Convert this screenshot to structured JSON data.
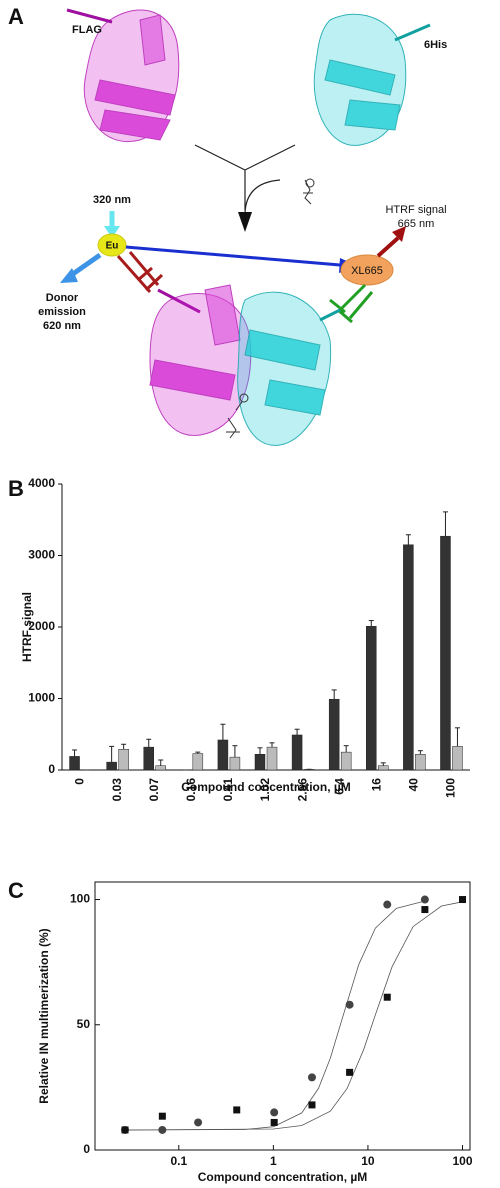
{
  "panel_a": {
    "label": "A",
    "flag": "FLAG",
    "his": "6His",
    "excitation": "320 nm",
    "donor": "Eu",
    "donor_emission": [
      "Donor",
      "emission",
      "620 nm"
    ],
    "htrf_signal": [
      "HTRF signal",
      "665 nm"
    ],
    "acceptor": "XL665"
  },
  "chart_data": [
    {
      "type": "bar",
      "panel_label": "B",
      "y_label": "HTRF signal",
      "x_label": "Compound concentration, µM",
      "categories": [
        "0",
        "0.03",
        "0.07",
        "0.16",
        "0.41",
        "1.02",
        "2.56",
        "6.4",
        "16",
        "40",
        "100"
      ],
      "series": [
        {
          "color": "#333333",
          "values": [
            190,
            110,
            320,
            0,
            420,
            220,
            490,
            990,
            2010,
            3150,
            3270
          ],
          "errors": [
            90,
            220,
            110,
            0,
            220,
            90,
            80,
            130,
            80,
            140,
            340
          ]
        },
        {
          "color": "#bbbbbb",
          "values": [
            0,
            290,
            60,
            230,
            180,
            320,
            10,
            250,
            60,
            220,
            330
          ],
          "errors": [
            0,
            70,
            80,
            20,
            160,
            60,
            0,
            90,
            40,
            50,
            260
          ]
        }
      ],
      "ylim": [
        0,
        4000
      ],
      "yticks": [
        0,
        1000,
        2000,
        3000,
        4000
      ]
    },
    {
      "type": "scatter",
      "panel_label": "C",
      "y_label": "Relative IN multimerization (%)",
      "x_label": "Compound concentration, µM",
      "log_x": true,
      "xlim": [
        0.013,
        120
      ],
      "xticks": [
        0.1,
        1,
        10,
        100
      ],
      "ylim": [
        0,
        107
      ],
      "yticks": [
        0,
        50,
        100
      ],
      "series": [
        {
          "marker": "circle",
          "color": "#444444",
          "x": [
            0.027,
            0.067,
            0.16,
            1.02,
            2.56,
            6.4,
            16,
            40
          ],
          "values": [
            8,
            8,
            11,
            15,
            29,
            58,
            98,
            100
          ]
        },
        {
          "marker": "square",
          "color": "#111111",
          "x": [
            0.027,
            0.067,
            0.41,
            1.02,
            2.56,
            6.4,
            16,
            40,
            100
          ],
          "values": [
            8,
            13.5,
            16,
            11,
            18,
            31,
            61,
            96,
            100
          ]
        }
      ],
      "fits": [
        {
          "color": "#555555",
          "x": [
            0.027,
            0.5,
            1,
            2,
            3,
            4,
            5.5,
            8,
            12,
            20,
            40
          ],
          "values": [
            8,
            8.2,
            9.3,
            14.8,
            24.6,
            36.6,
            54,
            74.1,
            88.6,
            96.5,
            99.4
          ]
        },
        {
          "color": "#555555",
          "x": [
            0.027,
            1,
            2,
            4,
            6,
            9,
            12,
            18,
            30,
            60,
            100
          ],
          "values": [
            8,
            8.4,
            9.8,
            15.5,
            24.5,
            40,
            54,
            73.2,
            89.2,
            97.4,
            99.1
          ]
        }
      ]
    }
  ]
}
